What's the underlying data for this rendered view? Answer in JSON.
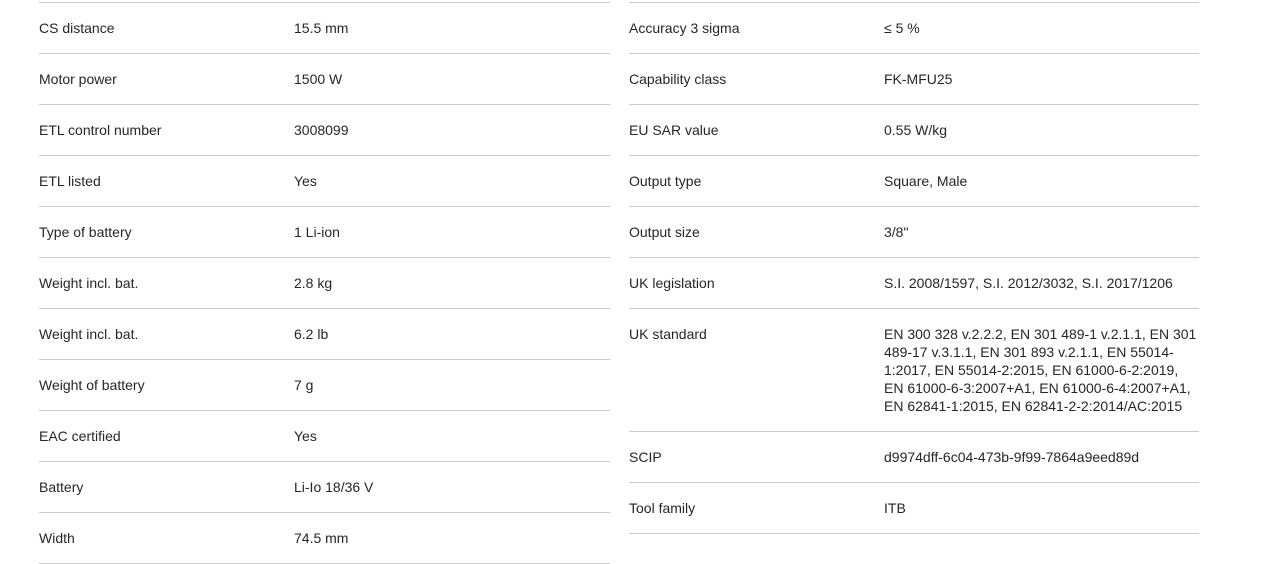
{
  "theme": {
    "background": "#ffffff",
    "text_color": "#262626",
    "divider_color": "#cbcbcb"
  },
  "spec_table": {
    "left_column": {
      "rows": [
        {
          "label": "CS distance",
          "value": "15.5 mm"
        },
        {
          "label": "Motor power",
          "value": "1500 W"
        },
        {
          "label": "ETL control number",
          "value": "3008099"
        },
        {
          "label": "ETL listed",
          "value": "Yes"
        },
        {
          "label": "Type of battery",
          "value": "1 Li-ion"
        },
        {
          "label": "Weight incl. bat.",
          "value": "2.8 kg"
        },
        {
          "label": "Weight incl. bat.",
          "value": "6.2 lb"
        },
        {
          "label": "Weight of battery",
          "value": "7 g"
        },
        {
          "label": "EAC certified",
          "value": "Yes"
        },
        {
          "label": "Battery",
          "value": "Li-Io 18/36 V"
        },
        {
          "label": "Width",
          "value": "74.5 mm"
        }
      ]
    },
    "right_column": {
      "rows": [
        {
          "label": "Accuracy 3 sigma",
          "value": "≤ 5 %"
        },
        {
          "label": "Capability class",
          "value": "FK-MFU25"
        },
        {
          "label": "EU SAR value",
          "value": "0.55 W/kg"
        },
        {
          "label": "Output type",
          "value": "Square, Male"
        },
        {
          "label": "Output size",
          "value": "3/8\""
        },
        {
          "label": "UK legislation",
          "value": "S.I. 2008/1597, S.I. 2012/3032, S.I. 2017/1206"
        },
        {
          "label": "UK standard",
          "value": "EN 300 328 v.2.2.2, EN 301 489-1 v.2.1.1, EN 301 489-17 v.3.1.1, EN 301 893 v.2.1.1, EN 55014-1:2017, EN 55014-2:2015, EN 61000-6-2:2019, EN 61000-6-3:2007+A1, EN 61000-6-4:2007+A1, EN 62841-1:2015, EN 62841-2-2:2014/AC:2015"
        },
        {
          "label": "SCIP",
          "value": "d9974dff-6c04-473b-9f99-7864a9eed89d"
        },
        {
          "label": "Tool family",
          "value": "ITB"
        }
      ]
    }
  }
}
